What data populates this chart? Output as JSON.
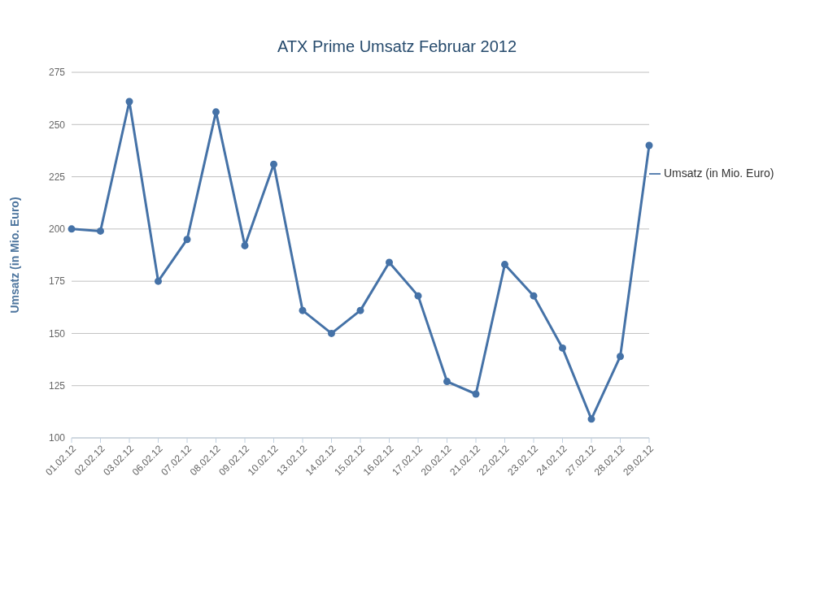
{
  "chart_data": {
    "type": "line",
    "title": "ATX Prime Umsatz Februar 2012",
    "ylabel": "Umsatz (in Mio. Euro)",
    "categories": [
      "01.02.12",
      "02.02.12",
      "03.02.12",
      "06.02.12",
      "07.02.12",
      "08.02.12",
      "09.02.12",
      "10.02.12",
      "13.02.12",
      "14.02.12",
      "15.02.12",
      "16.02.12",
      "17.02.12",
      "20.02.12",
      "21.02.12",
      "22.02.12",
      "23.02.12",
      "24.02.12",
      "27.02.12",
      "28.02.12",
      "29.02.12"
    ],
    "series": [
      {
        "name": "Umsatz (in Mio. Euro)",
        "color": "#4572a7",
        "values": [
          200,
          199,
          261,
          175,
          195,
          256,
          192,
          231,
          161,
          150,
          161,
          184,
          168,
          127,
          121,
          183,
          168,
          143,
          109,
          139,
          240
        ]
      }
    ],
    "ylim": [
      100,
      275
    ],
    "yticks": [
      100,
      125,
      150,
      175,
      200,
      225,
      250,
      275
    ],
    "grid": "y",
    "legend": "top right",
    "marker": "circle",
    "line_style": "solid"
  }
}
